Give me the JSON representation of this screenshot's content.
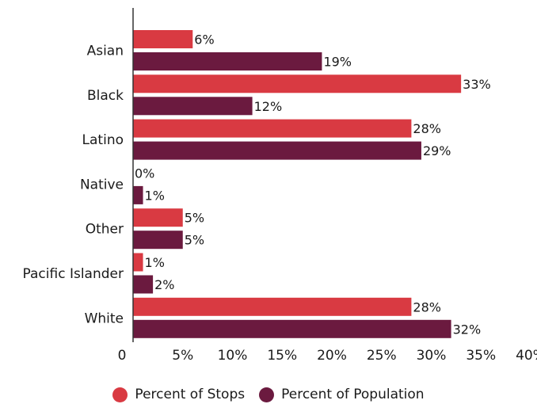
{
  "chart_data": {
    "type": "bar",
    "orientation": "horizontal",
    "categories": [
      "Asian",
      "Black",
      "Latino",
      "Native",
      "Other",
      "Pacific Islander",
      "White"
    ],
    "series": [
      {
        "name": "Percent of Stops",
        "values": [
          6,
          33,
          28,
          0,
          5,
          1,
          28
        ],
        "labels": [
          "6%",
          "33%",
          "28%",
          "0%",
          "5%",
          "1%",
          "28%"
        ],
        "color": "#d93a42"
      },
      {
        "name": "Percent of Population",
        "values": [
          19,
          12,
          29,
          1,
          5,
          2,
          32
        ],
        "labels": [
          "19%",
          "12%",
          "29%",
          "1%",
          "5%",
          "2%",
          "32%"
        ],
        "color": "#6b1a3f"
      }
    ],
    "xlim": [
      0,
      40
    ],
    "ticks": [
      0,
      5,
      10,
      15,
      20,
      25,
      30,
      35,
      40
    ],
    "tick_labels": [
      "0",
      "5%",
      "10%",
      "15%",
      "20%",
      "25%",
      "30%",
      "35%",
      "40%"
    ],
    "grid": false,
    "legend_position": "bottom-center"
  }
}
